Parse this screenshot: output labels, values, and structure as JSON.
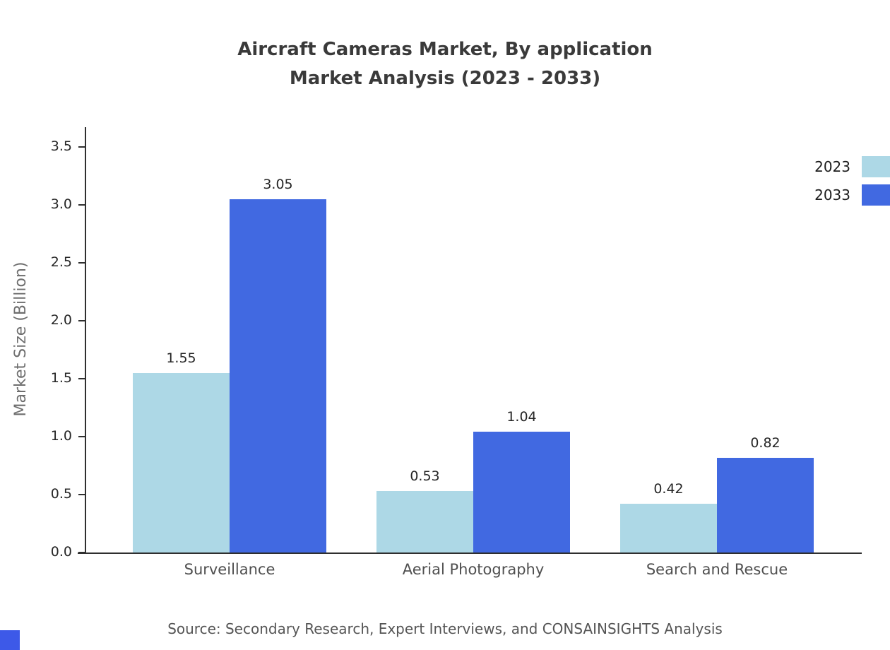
{
  "title": {
    "line1": "Aircraft Cameras Market, By application",
    "line2": "Market Analysis (2023 - 2033)"
  },
  "source": {
    "text": "Source: Secondary Research, Expert Interviews, and CONSAINSIGHTS Analysis"
  },
  "colors": {
    "series_2023": "#ADD8E6",
    "series_2033": "#4169E1",
    "watermark": "#3D59E8",
    "axis": "#2F2F2F"
  },
  "chart_data": {
    "type": "bar",
    "title": "Aircraft Cameras Market, By application Market Analysis (2023 - 2033)",
    "categories": [
      "Surveillance",
      "Aerial Photography",
      "Search and Rescue"
    ],
    "series": [
      {
        "name": "2023",
        "color": "#ADD8E6",
        "values": [
          1.55,
          0.53,
          0.42
        ]
      },
      {
        "name": "2033",
        "color": "#4169E1",
        "values": [
          3.05,
          1.04,
          0.82
        ]
      }
    ],
    "xlabel": "",
    "ylabel": "Market Size (Billion)",
    "ylim": [
      0,
      3.5
    ],
    "ytick_step": 0.5,
    "yticks": [
      "0.0",
      "0.5",
      "1.0",
      "1.5",
      "2.0",
      "2.5",
      "3.0",
      "3.5"
    ],
    "grid": false,
    "legend_position": "top-right",
    "legend_entries": [
      "2023",
      "2033"
    ]
  }
}
